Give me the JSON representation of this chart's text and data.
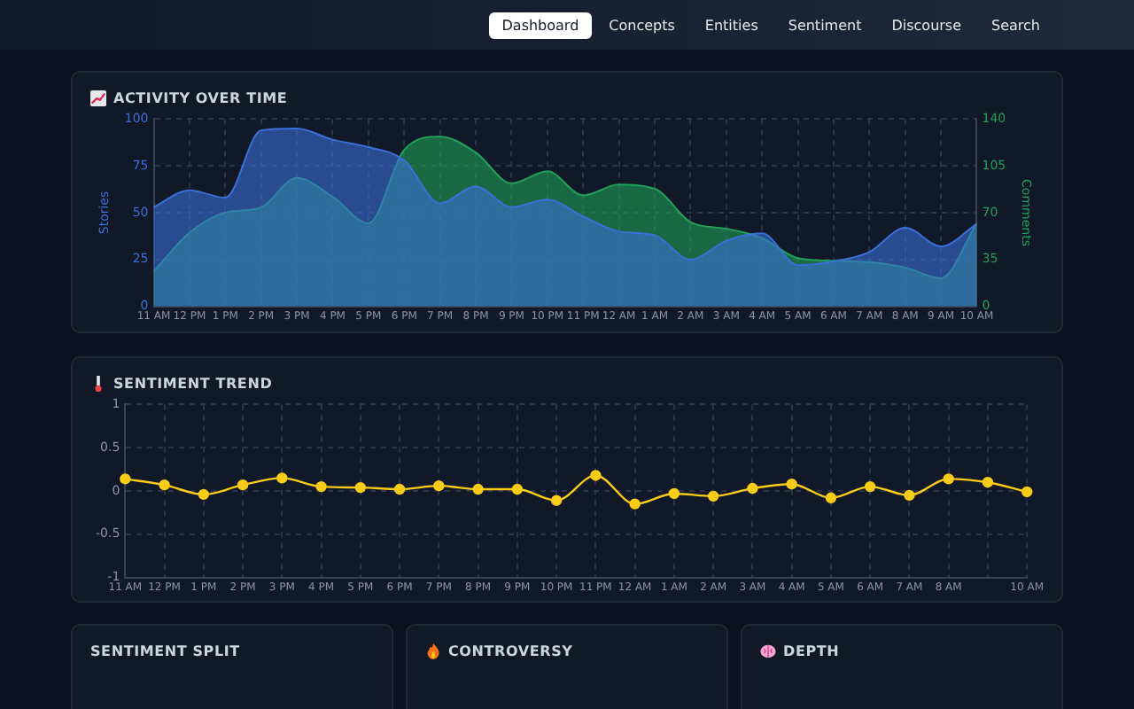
{
  "chart_data": [
    {
      "type": "other",
      "annotations": [
        "Dashboard",
        "Concepts",
        "Entities",
        "Sentiment",
        "Discourse",
        "Search"
      ]
    },
    {
      "type": "area",
      "title": "ACTIVITY OVER TIME",
      "ylabel": "Stories",
      "y2label": "Comments",
      "categories": [
        "11 AM",
        "12 PM",
        "1 PM",
        "2 PM",
        "3 PM",
        "4 PM",
        "5 PM",
        "6 PM",
        "7 PM",
        "8 PM",
        "9 PM",
        "10 PM",
        "11 PM",
        "12 AM",
        "1 AM",
        "2 AM",
        "3 AM",
        "4 AM",
        "5 AM",
        "6 AM",
        "7 AM",
        "8 AM",
        "9 AM",
        "10 AM"
      ],
      "series": [
        {
          "color": "#3b6fd8",
          "axis": "y",
          "values": [
            53,
            62,
            58,
            94,
            95,
            89,
            85,
            78,
            55,
            64,
            53,
            57,
            48,
            40,
            38,
            25,
            35,
            39,
            22,
            24,
            29,
            42,
            32,
            44
          ]
        },
        {
          "color": "#22a05a",
          "axis": "y2",
          "values": [
            26,
            55,
            70,
            74,
            96,
            82,
            62,
            117,
            127,
            115,
            92,
            101,
            83,
            91,
            88,
            63,
            58,
            51,
            36,
            34,
            33,
            29,
            21,
            62
          ]
        }
      ],
      "ylim": [
        0,
        100
      ],
      "yticks": [
        0,
        25,
        50,
        75,
        100
      ],
      "y2lim": [
        0,
        140
      ],
      "y2ticks": [
        0,
        35,
        70,
        105,
        140
      ],
      "grid": true
    },
    {
      "type": "line",
      "title": "SENTIMENT TREND",
      "categories": [
        "11 AM",
        "12 PM",
        "1 PM",
        "2 PM",
        "3 PM",
        "4 PM",
        "5 PM",
        "6 PM",
        "7 PM",
        "8 PM",
        "9 PM",
        "10 PM",
        "11 PM",
        "12 AM",
        "1 AM",
        "2 AM",
        "3 AM",
        "4 AM",
        "5 AM",
        "6 AM",
        "7 AM",
        "8 AM",
        null,
        "10 AM"
      ],
      "series": [
        {
          "color": "#facc15",
          "values": [
            0.14,
            0.07,
            -0.04,
            0.07,
            0.15,
            0.05,
            0.04,
            0.02,
            0.06,
            0.02,
            0.02,
            -0.11,
            0.18,
            -0.15,
            -0.03,
            -0.06,
            0.03,
            0.08,
            -0.08,
            0.05,
            -0.05,
            0.14,
            0.1,
            -0.01
          ]
        }
      ],
      "ylim": [
        -1,
        1
      ],
      "yticks": [
        -1,
        -0.5,
        0,
        0.5,
        1
      ],
      "grid": true,
      "marker": "circle"
    },
    {
      "type": "other",
      "title": "SENTIMENT SPLIT"
    },
    {
      "type": "other",
      "title": "CONTROVERSY"
    },
    {
      "type": "other",
      "title": "DEPTH"
    }
  ]
}
